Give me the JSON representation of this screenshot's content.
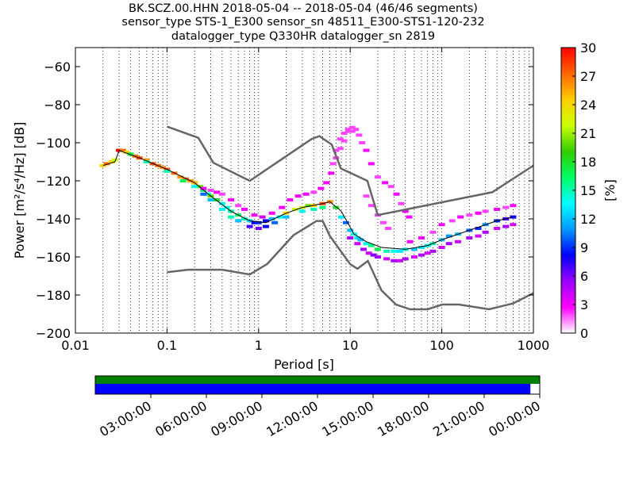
{
  "chart_data": {
    "type": "heatmap",
    "title_lines": [
      "BK.SCZ.00.HHN   2018-05-04 -- 2018-05-04  (46/46 segments)",
      "sensor_type STS-1_E300 sensor_sn 48511_E300-STS1-120-232",
      "datalogger_type Q330HR datalogger_sn 2819"
    ],
    "xlabel": "Period [s]",
    "ylabel": "Power [m²/s⁴/Hz] [dB]",
    "xscale": "log",
    "xlim": [
      0.01,
      1000
    ],
    "ylim": [
      -200,
      -50
    ],
    "x_ticks": [
      0.01,
      0.1,
      1,
      10,
      100,
      1000
    ],
    "x_tick_labels": [
      "0.01",
      "0.1",
      "1",
      "10",
      "100",
      "1000"
    ],
    "y_ticks": [
      -200,
      -180,
      -160,
      -140,
      -120,
      -100,
      -80,
      -60
    ],
    "y_tick_labels": [
      "−200",
      "−180",
      "−160",
      "−140",
      "−120",
      "−100",
      "−80",
      "−60"
    ],
    "grid": "dotted-vertical",
    "colorbar": {
      "label": "[%]",
      "range": [
        0,
        30
      ],
      "ticks": [
        0,
        3,
        6,
        9,
        12,
        15,
        18,
        21,
        24,
        27,
        30
      ],
      "colors": [
        "#ffffff",
        "#ff00ff",
        "#9900ff",
        "#0000ff",
        "#0099ff",
        "#00ffff",
        "#00ff66",
        "#33cc00",
        "#ccff00",
        "#ffcc00",
        "#ff6600",
        "#ff0000"
      ]
    },
    "noise_models": [
      {
        "name": "NHNM",
        "color": "#666666",
        "points": [
          [
            0.1,
            -91.5
          ],
          [
            0.22,
            -97.4
          ],
          [
            0.32,
            -110.5
          ],
          [
            0.8,
            -120
          ],
          [
            3.8,
            -98
          ],
          [
            4.6,
            -96.5
          ],
          [
            6.3,
            -101
          ],
          [
            7.9,
            -113.5
          ],
          [
            15.4,
            -120
          ],
          [
            20,
            -138
          ],
          [
            354.8,
            -126
          ],
          [
            1000,
            -112
          ]
        ]
      },
      {
        "name": "NLNM",
        "color": "#666666",
        "points": [
          [
            0.1,
            -168
          ],
          [
            0.17,
            -166.7
          ],
          [
            0.4,
            -166.7
          ],
          [
            0.8,
            -169.2
          ],
          [
            1.24,
            -163.7
          ],
          [
            2.4,
            -148.6
          ],
          [
            4.3,
            -141.1
          ],
          [
            5,
            -141.1
          ],
          [
            6,
            -149
          ],
          [
            10,
            -163.8
          ],
          [
            12,
            -166.2
          ],
          [
            15.6,
            -162.1
          ],
          [
            21.9,
            -177.5
          ],
          [
            31.6,
            -185
          ],
          [
            45,
            -187.5
          ],
          [
            70,
            -187.5
          ],
          [
            101,
            -185
          ],
          [
            154,
            -185
          ],
          [
            328,
            -187.5
          ],
          [
            600,
            -184.4
          ],
          [
            1000,
            -179
          ]
        ]
      }
    ],
    "median_curve": {
      "name": "median",
      "color": "#000000",
      "points": [
        [
          0.02,
          -112
        ],
        [
          0.027,
          -110
        ],
        [
          0.03,
          -104
        ],
        [
          0.05,
          -108
        ],
        [
          0.1,
          -114
        ],
        [
          0.2,
          -121
        ],
        [
          0.3,
          -128
        ],
        [
          0.5,
          -136
        ],
        [
          0.8,
          -141
        ],
        [
          1.2,
          -142
        ],
        [
          2,
          -137
        ],
        [
          3,
          -134
        ],
        [
          5,
          -132
        ],
        [
          6,
          -131
        ],
        [
          8,
          -136
        ],
        [
          11,
          -148
        ],
        [
          15,
          -152
        ],
        [
          22,
          -155
        ],
        [
          40,
          -156
        ],
        [
          70,
          -154
        ],
        [
          100,
          -151
        ],
        [
          200,
          -146
        ],
        [
          400,
          -141
        ],
        [
          600,
          -139
        ]
      ]
    },
    "ppsd_cells": [
      [
        0.02,
        -112,
        24
      ],
      [
        0.022,
        -111,
        27
      ],
      [
        0.025,
        -110,
        24
      ],
      [
        0.027,
        -109,
        22
      ],
      [
        0.03,
        -104,
        30
      ],
      [
        0.033,
        -104,
        27
      ],
      [
        0.036,
        -105,
        24
      ],
      [
        0.04,
        -106,
        28
      ],
      [
        0.045,
        -107,
        27
      ],
      [
        0.05,
        -108,
        28
      ],
      [
        0.06,
        -109,
        26
      ],
      [
        0.07,
        -111,
        28
      ],
      [
        0.08,
        -112,
        27
      ],
      [
        0.09,
        -113,
        26
      ],
      [
        0.1,
        -114,
        28
      ],
      [
        0.12,
        -116,
        27
      ],
      [
        0.14,
        -118,
        26
      ],
      [
        0.16,
        -119,
        27
      ],
      [
        0.18,
        -120,
        26
      ],
      [
        0.2,
        -121,
        25
      ],
      [
        0.23,
        -123,
        20
      ],
      [
        0.25,
        -125,
        16
      ],
      [
        0.28,
        -127,
        14
      ],
      [
        0.3,
        -128,
        20
      ],
      [
        0.35,
        -130,
        18
      ],
      [
        0.4,
        -132,
        14
      ],
      [
        0.45,
        -134,
        14
      ],
      [
        0.5,
        -136,
        15
      ],
      [
        0.6,
        -138,
        16
      ],
      [
        0.7,
        -140,
        15
      ],
      [
        0.8,
        -141,
        13
      ],
      [
        0.9,
        -142,
        8
      ],
      [
        1,
        -142,
        9
      ],
      [
        1.2,
        -141,
        8
      ],
      [
        1.4,
        -140,
        12
      ],
      [
        1.7,
        -139,
        14
      ],
      [
        2,
        -137,
        24
      ],
      [
        2.5,
        -135,
        22
      ],
      [
        3,
        -134,
        22
      ],
      [
        3.5,
        -133,
        20
      ],
      [
        4,
        -133,
        24
      ],
      [
        5,
        -132,
        28
      ],
      [
        6,
        -131,
        26
      ],
      [
        0.04,
        -106,
        17
      ],
      [
        0.06,
        -110,
        15
      ],
      [
        0.1,
        -115,
        15
      ],
      [
        0.15,
        -120,
        17
      ],
      [
        0.2,
        -123,
        14
      ],
      [
        0.25,
        -127,
        10
      ],
      [
        0.3,
        -130,
        12
      ],
      [
        0.4,
        -135,
        14
      ],
      [
        0.5,
        -139,
        15
      ],
      [
        0.6,
        -141,
        12
      ],
      [
        0.8,
        -144,
        7
      ],
      [
        1,
        -145,
        6
      ],
      [
        1.2,
        -144,
        8
      ],
      [
        1.5,
        -142,
        10
      ],
      [
        2,
        -139,
        12
      ],
      [
        3,
        -136,
        14
      ],
      [
        4,
        -135,
        15
      ],
      [
        5,
        -134,
        16
      ],
      [
        0.25,
        -124,
        3
      ],
      [
        0.3,
        -125,
        2
      ],
      [
        0.35,
        -126,
        3
      ],
      [
        0.4,
        -127,
        2
      ],
      [
        0.5,
        -130,
        3
      ],
      [
        0.6,
        -133,
        2
      ],
      [
        0.7,
        -135,
        3
      ],
      [
        0.9,
        -138,
        3
      ],
      [
        1.1,
        -139,
        4
      ],
      [
        1.4,
        -137,
        3
      ],
      [
        1.8,
        -134,
        3
      ],
      [
        2.2,
        -130,
        3
      ],
      [
        2.7,
        -128,
        3
      ],
      [
        3.3,
        -127,
        3
      ],
      [
        4,
        -126,
        2
      ],
      [
        4.8,
        -124,
        3
      ],
      [
        5.5,
        -121,
        3
      ],
      [
        6.2,
        -116,
        3
      ],
      [
        7,
        -108,
        2
      ],
      [
        7.8,
        -103,
        2
      ],
      [
        8.6,
        -99,
        2
      ],
      [
        9.5,
        -94,
        2
      ],
      [
        10.5,
        -92,
        2
      ],
      [
        11.5,
        -93,
        2
      ],
      [
        12.5,
        -96,
        2
      ],
      [
        13.5,
        -100,
        2
      ],
      [
        15,
        -104,
        3
      ],
      [
        17,
        -111,
        3
      ],
      [
        20,
        -118,
        2
      ],
      [
        24,
        -121,
        3
      ],
      [
        28,
        -123,
        2
      ],
      [
        32,
        -127,
        3
      ],
      [
        36,
        -132,
        2
      ],
      [
        40,
        -136,
        3
      ],
      [
        44,
        -139,
        3
      ],
      [
        6.5,
        -111,
        2
      ],
      [
        7,
        -104,
        2
      ],
      [
        7.8,
        -98,
        2
      ],
      [
        8.6,
        -95,
        2
      ],
      [
        9.5,
        -93,
        2
      ],
      [
        10.5,
        -94,
        2
      ],
      [
        15,
        -128,
        2
      ],
      [
        17,
        -133,
        2
      ],
      [
        20,
        -138,
        2
      ],
      [
        23,
        -142,
        2
      ],
      [
        26,
        -145,
        2
      ],
      [
        7,
        -134,
        18
      ],
      [
        8,
        -139,
        13
      ],
      [
        9,
        -142,
        10
      ],
      [
        10,
        -146,
        12
      ],
      [
        11,
        -148,
        14
      ],
      [
        12,
        -150,
        13
      ],
      [
        13,
        -151,
        12
      ],
      [
        15,
        -153,
        14
      ],
      [
        17,
        -154,
        16
      ],
      [
        20,
        -156,
        17
      ],
      [
        25,
        -157,
        15
      ],
      [
        30,
        -157,
        14
      ],
      [
        35,
        -157,
        13
      ],
      [
        40,
        -156,
        14
      ],
      [
        50,
        -156,
        12
      ],
      [
        60,
        -155,
        13
      ],
      [
        70,
        -154,
        14
      ],
      [
        80,
        -153,
        15
      ],
      [
        100,
        -151,
        12
      ],
      [
        120,
        -149,
        11
      ],
      [
        150,
        -148,
        12
      ],
      [
        200,
        -146,
        10
      ],
      [
        250,
        -145,
        9
      ],
      [
        300,
        -143,
        11
      ],
      [
        400,
        -141,
        9
      ],
      [
        500,
        -140,
        7
      ],
      [
        600,
        -139,
        8
      ],
      [
        10,
        -150,
        5
      ],
      [
        12,
        -153,
        4
      ],
      [
        14,
        -156,
        5
      ],
      [
        16,
        -158,
        4
      ],
      [
        18,
        -159,
        6
      ],
      [
        20,
        -160,
        5
      ],
      [
        25,
        -161,
        4
      ],
      [
        30,
        -162,
        5
      ],
      [
        35,
        -162,
        4
      ],
      [
        40,
        -161,
        5
      ],
      [
        50,
        -160,
        4
      ],
      [
        60,
        -159,
        5
      ],
      [
        70,
        -158,
        4
      ],
      [
        80,
        -157,
        5
      ],
      [
        100,
        -155,
        4
      ],
      [
        120,
        -153,
        5
      ],
      [
        150,
        -152,
        4
      ],
      [
        200,
        -150,
        5
      ],
      [
        250,
        -149,
        4
      ],
      [
        300,
        -147,
        5
      ],
      [
        400,
        -145,
        4
      ],
      [
        500,
        -144,
        5
      ],
      [
        600,
        -143,
        4
      ],
      [
        45,
        -152,
        3
      ],
      [
        60,
        -150,
        3
      ],
      [
        80,
        -147,
        2
      ],
      [
        100,
        -143,
        3
      ],
      [
        130,
        -141,
        2
      ],
      [
        160,
        -139,
        3
      ],
      [
        200,
        -138,
        2
      ],
      [
        250,
        -137,
        3
      ],
      [
        300,
        -136,
        2
      ],
      [
        400,
        -135,
        3
      ],
      [
        500,
        -134,
        2
      ],
      [
        600,
        -133,
        3
      ]
    ]
  },
  "time_axis": {
    "labels": [
      "03:00:00",
      "06:00:00",
      "09:00:00",
      "12:00:00",
      "15:00:00",
      "18:00:00",
      "21:00:00",
      "00:00:00"
    ],
    "data_coverage_fraction": 1.0,
    "processed_coverage_fraction": 0.979,
    "data_color": "#008000",
    "processed_color": "#0000ff"
  }
}
